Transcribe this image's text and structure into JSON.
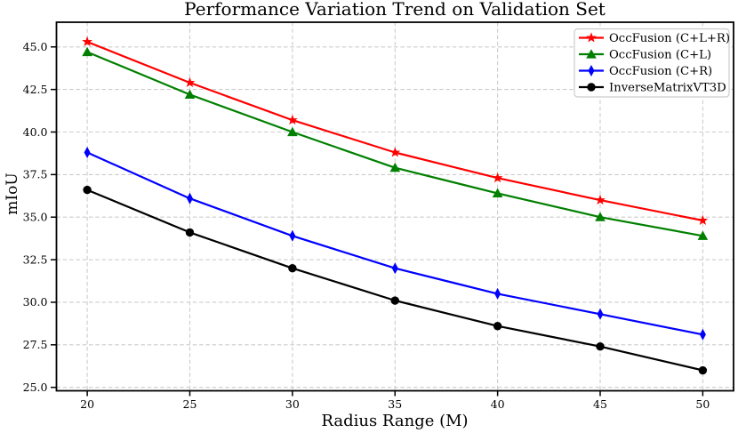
{
  "title": "Performance Variation Trend on Validation Set",
  "chart_data": {
    "type": "line",
    "title": "Performance Variation Trend on Validation Set",
    "xlabel": "Radius Range (M)",
    "ylabel": "mIoU",
    "x": [
      20,
      25,
      30,
      35,
      40,
      45,
      50
    ],
    "series": [
      {
        "name": "OccFusion (C+L+R)",
        "color": "#ff0000",
        "marker": "star",
        "values": [
          45.3,
          42.9,
          40.7,
          38.8,
          37.3,
          36.0,
          34.8
        ]
      },
      {
        "name": "OccFusion (C+L)",
        "color": "#008000",
        "marker": "triangle",
        "values": [
          44.7,
          42.2,
          40.0,
          37.9,
          36.4,
          35.0,
          33.9
        ]
      },
      {
        "name": "OccFusion (C+R)",
        "color": "#0000ff",
        "marker": "diamond",
        "values": [
          38.8,
          36.1,
          33.9,
          32.0,
          30.5,
          29.3,
          28.1
        ]
      },
      {
        "name": "InverseMatrixVT3D",
        "color": "#000000",
        "marker": "circle",
        "values": [
          36.6,
          34.1,
          32.0,
          30.1,
          28.6,
          27.4,
          26.0
        ]
      }
    ],
    "xlim": [
      18.5,
      51.5
    ],
    "ylim": [
      24.8,
      46.45
    ],
    "xticks": [
      20,
      25,
      30,
      35,
      40,
      45,
      50
    ],
    "xtick_labels": [
      "20",
      "25",
      "30",
      "35",
      "40",
      "45",
      "50"
    ],
    "yticks": [
      25.0,
      27.5,
      30.0,
      32.5,
      35.0,
      37.5,
      40.0,
      42.5,
      45.0
    ],
    "ytick_labels": [
      "25.0",
      "27.5",
      "30.0",
      "32.5",
      "35.0",
      "37.5",
      "40.0",
      "42.5",
      "45.0"
    ],
    "grid": true,
    "grid_color": "#cccccc",
    "spine_color": "#000000",
    "legend_position": "upper right"
  }
}
